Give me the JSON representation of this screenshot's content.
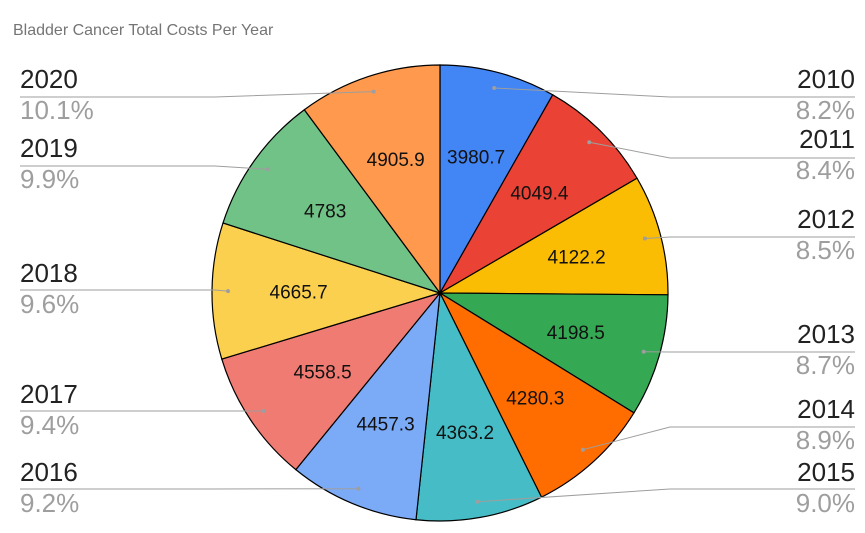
{
  "chart_data": {
    "type": "pie",
    "title": "Bladder Cancer Total Costs Per Year",
    "categories": [
      "2010",
      "2011",
      "2012",
      "2013",
      "2014",
      "2015",
      "2016",
      "2017",
      "2018",
      "2019",
      "2020"
    ],
    "values": [
      3980.7,
      4049.4,
      4122.2,
      4198.5,
      4280.3,
      4363.2,
      4457.3,
      4558.5,
      4665.7,
      4783,
      4905.9
    ],
    "value_labels": [
      "3980.7",
      "4049.4",
      "4122.2",
      "4198.5",
      "4280.3",
      "4363.2",
      "4457.3",
      "4558.5",
      "4665.7",
      "4783",
      "4905.9"
    ],
    "percent_labels": [
      "8.2%",
      "8.4%",
      "8.5%",
      "8.7%",
      "8.9%",
      "9.0%",
      "9.2%",
      "9.4%",
      "9.6%",
      "9.9%",
      "10.1%"
    ],
    "colors": [
      "#4285f4",
      "#ea4335",
      "#fbbc04",
      "#34a853",
      "#ff6d01",
      "#46bdc6",
      "#7baaf7",
      "#f07b72",
      "#fcd04f",
      "#71c287",
      "#ff994d"
    ],
    "legend": "none"
  }
}
